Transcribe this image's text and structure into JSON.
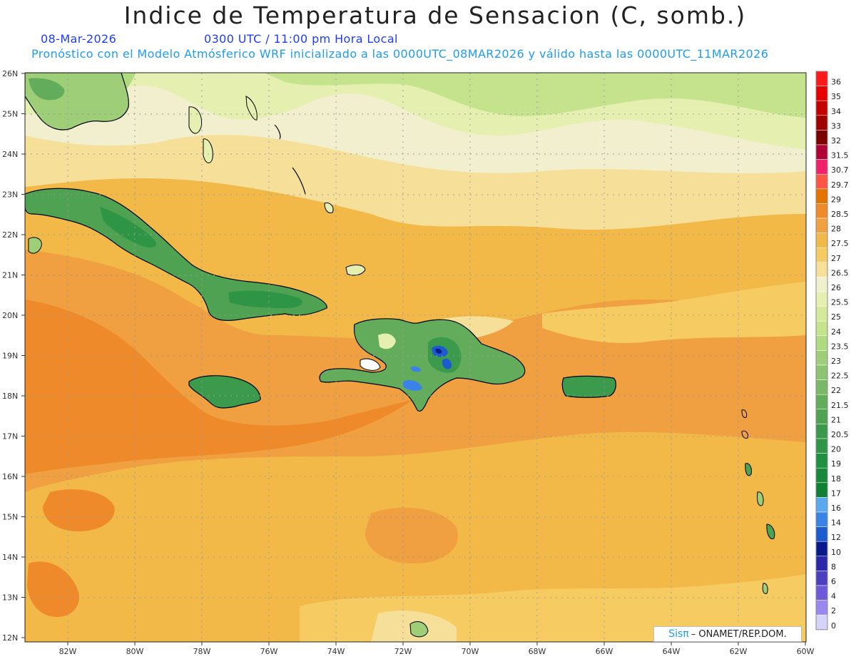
{
  "title": "Indice de Temperatura de Sensacion (C, somb.)",
  "date": "08-Mar-2026",
  "time": "0300 UTC / 11:00 pm Hora Local",
  "info": "Pronóstico con el Modelo Atmósferico WRF inicializado a las 0000UTC_08MAR2026 y válido hasta las  0000UTC_11MAR2026",
  "credit": {
    "brand": "Sisπ",
    "text": "– ONAMET/REP.DOM."
  },
  "lat_labels": [
    "26N",
    "25N",
    "24N",
    "23N",
    "22N",
    "21N",
    "20N",
    "19N",
    "18N",
    "17N",
    "16N",
    "15N",
    "14N",
    "13N",
    "12N"
  ],
  "lon_labels": [
    "82W",
    "80W",
    "78W",
    "76W",
    "74W",
    "72W",
    "70W",
    "68W",
    "66W",
    "64W",
    "62W",
    "60W"
  ],
  "legend": [
    {
      "label": "36",
      "color": "#ff1a1a"
    },
    {
      "label": "35",
      "color": "#e60000"
    },
    {
      "label": "34",
      "color": "#c40000"
    },
    {
      "label": "33",
      "color": "#a00000"
    },
    {
      "label": "32",
      "color": "#7a0000"
    },
    {
      "label": "31.5",
      "color": "#b0003a"
    },
    {
      "label": "30.7",
      "color": "#f0206a"
    },
    {
      "label": "29.7",
      "color": "#ff5544"
    },
    {
      "label": "29",
      "color": "#e67300"
    },
    {
      "label": "28.5",
      "color": "#ee8a2a"
    },
    {
      "label": "28",
      "color": "#f0a040"
    },
    {
      "label": "27.5",
      "color": "#f2b848"
    },
    {
      "label": "27",
      "color": "#f6cc62"
    },
    {
      "label": "26.5",
      "color": "#f6df98"
    },
    {
      "label": "26",
      "color": "#f2efce"
    },
    {
      "label": "25.5",
      "color": "#e4efb0"
    },
    {
      "label": "25",
      "color": "#d4ea9a"
    },
    {
      "label": "24",
      "color": "#c4e38c"
    },
    {
      "label": "23.5",
      "color": "#b0da80"
    },
    {
      "label": "23",
      "color": "#9ecf78"
    },
    {
      "label": "22.5",
      "color": "#8cc472"
    },
    {
      "label": "22",
      "color": "#78b866"
    },
    {
      "label": "21.5",
      "color": "#62ac5c"
    },
    {
      "label": "21",
      "color": "#4ea252"
    },
    {
      "label": "20.5",
      "color": "#3c9a4c"
    },
    {
      "label": "20",
      "color": "#2e9446"
    },
    {
      "label": "19",
      "color": "#209040"
    },
    {
      "label": "18",
      "color": "#18883a"
    },
    {
      "label": "17",
      "color": "#108034"
    },
    {
      "label": "16",
      "color": "#5aa8f0"
    },
    {
      "label": "14",
      "color": "#3a82e8"
    },
    {
      "label": "12",
      "color": "#1a5cd0"
    },
    {
      "label": "10",
      "color": "#0a1a8c"
    },
    {
      "label": "8",
      "color": "#2a28a8"
    },
    {
      "label": "6",
      "color": "#4a40c0"
    },
    {
      "label": "4",
      "color": "#6c5ad8"
    },
    {
      "label": "2",
      "color": "#9a88ee"
    },
    {
      "label": "0",
      "color": "#d6d2f8"
    }
  ]
}
